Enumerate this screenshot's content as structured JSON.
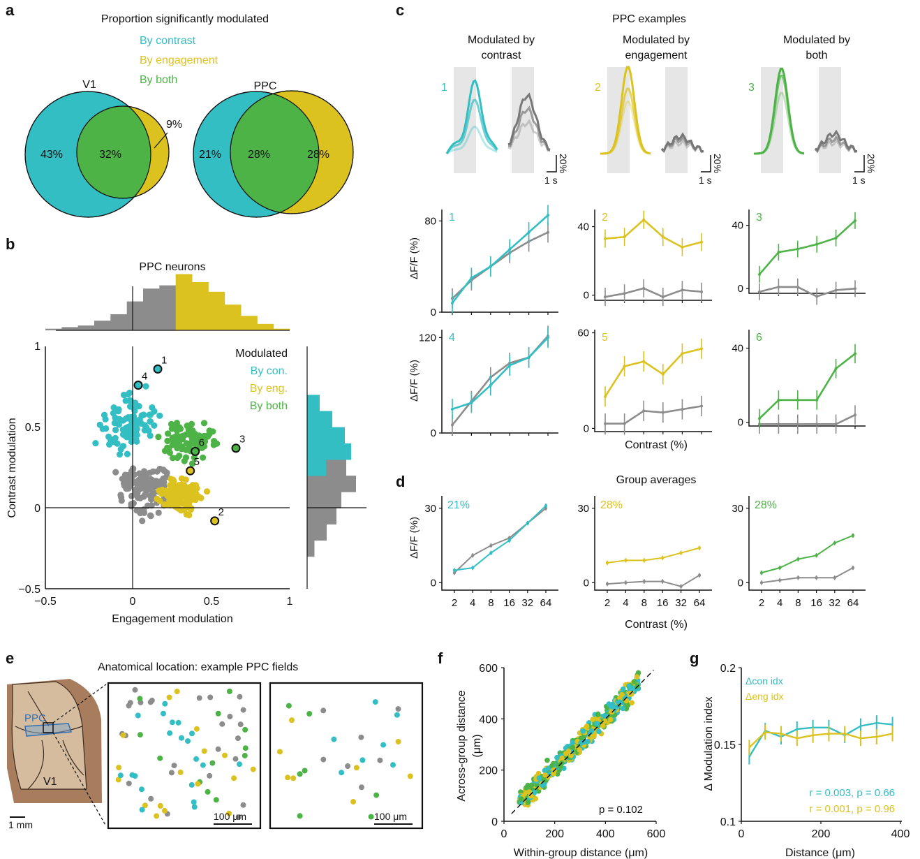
{
  "colors": {
    "contrast": "#32bec3",
    "engagement": "#dcc21e",
    "both": "#4db347",
    "none": "#8c8c8c",
    "brain": "#a77d5d",
    "ppc_outline": "#2e6fb6"
  },
  "panels": {
    "a": {
      "label": "a",
      "title": "Proportion significantly modulated",
      "legend": [
        "By contrast",
        "By engagement",
        "By both"
      ],
      "v1": {
        "name": "V1",
        "contrast_only": "43%",
        "both": "32%",
        "engagement_only": "9%"
      },
      "ppc": {
        "name": "PPC",
        "contrast_only": "21%",
        "both": "28%",
        "engagement_only": "28%"
      }
    },
    "b": {
      "label": "b",
      "title": "PPC neurons",
      "xlabel": "Engagement modulation",
      "ylabel": "Contrast modulation",
      "xticks": [
        "−0.5",
        "0",
        "0.5",
        "1"
      ],
      "yticks": [
        "−0.5",
        "0",
        "0.5",
        "1"
      ],
      "legend_title": "Modulated",
      "legend": [
        "By con.",
        "By eng.",
        "By both"
      ],
      "examples": [
        "1",
        "2",
        "3",
        "4",
        "5",
        "6"
      ]
    },
    "c": {
      "label": "c",
      "title": "PPC examples",
      "col_titles": [
        [
          "Modulated by",
          "contrast"
        ],
        [
          "Modulated by",
          "engagement"
        ],
        [
          "Modulated by",
          "both"
        ]
      ],
      "trace_numbers": [
        "1",
        "2",
        "3"
      ],
      "scalebar_time": "1 s",
      "scalebar_amp": "20%",
      "ylabel": "ΔF/F (%)",
      "xlabel": "Contrast (%)",
      "curve_numbers": [
        "1",
        "2",
        "3",
        "4",
        "5",
        "6"
      ]
    },
    "d": {
      "label": "d",
      "title": "Group averages",
      "percents": [
        "21%",
        "28%",
        "28%"
      ],
      "ylabel": "ΔF/F (%)",
      "xlabel": "Contrast (%)",
      "xticks": [
        "2",
        "4",
        "8",
        "16",
        "32",
        "64"
      ]
    },
    "e": {
      "label": "e",
      "title": "Anatomical location: example PPC fields",
      "ppc_label": "PPC",
      "v1_label": "V1",
      "scale_brain": "1 mm",
      "scale_field": "100 μm"
    },
    "f": {
      "label": "f",
      "xlabel": "Within-group distance (μm)",
      "ylabel_1": "Across-group distance",
      "ylabel_2": "(μm)",
      "ticks": [
        "0",
        "200",
        "400",
        "600"
      ],
      "pvalue": "p = 0.102"
    },
    "g": {
      "label": "g",
      "xlabel": "Distance (μm)",
      "ylabel": "Δ Modulation index",
      "xticks": [
        "0",
        "200",
        "400"
      ],
      "yticks": [
        "0.1",
        "0.15",
        "0.2"
      ],
      "legend": [
        "Δcon idx",
        "Δeng idx"
      ],
      "stat_con": "r = 0.003, p = 0.66",
      "stat_eng": "r = 0.001, p = 0.96"
    }
  },
  "chart_data": [
    {
      "panel": "a",
      "type": "venn",
      "title": "Proportion significantly modulated",
      "series": [
        {
          "name": "V1",
          "contrast_only": 43,
          "both": 32,
          "engagement_only": 9
        },
        {
          "name": "PPC",
          "contrast_only": 21,
          "both": 28,
          "engagement_only": 28
        }
      ]
    },
    {
      "panel": "b",
      "type": "scatter",
      "title": "PPC neurons",
      "xlabel": "Engagement modulation",
      "ylabel": "Contrast modulation",
      "xlim": [
        -0.5,
        1
      ],
      "ylim": [
        -0.5,
        1
      ],
      "examples": [
        {
          "id": "1",
          "x": 0.19,
          "y": 0.86
        },
        {
          "id": "2",
          "x": 0.54,
          "y": -0.08
        },
        {
          "id": "3",
          "x": 0.67,
          "y": 0.37
        },
        {
          "id": "4",
          "x": 0.07,
          "y": 0.76
        },
        {
          "id": "5",
          "x": 0.39,
          "y": 0.23
        },
        {
          "id": "6",
          "x": 0.42,
          "y": 0.35
        }
      ],
      "top_histogram_bins": [
        -0.5,
        -0.4,
        -0.3,
        -0.2,
        -0.1,
        0,
        0.1,
        0.2,
        0.3,
        0.4,
        0.5,
        0.6,
        0.7,
        0.8,
        0.9
      ],
      "top_histogram_none": [
        1,
        2,
        3,
        6,
        10,
        18,
        26,
        28,
        0,
        0,
        0,
        0,
        0,
        0,
        0
      ],
      "top_histogram_eng": [
        0,
        0,
        0,
        0,
        0,
        0,
        0,
        0,
        35,
        30,
        24,
        16,
        9,
        4,
        1
      ],
      "right_histogram_bins": [
        -0.3,
        -0.2,
        -0.1,
        0,
        0.1,
        0.2,
        0.3,
        0.4,
        0.5,
        0.6
      ],
      "right_histogram_none": [
        3,
        8,
        12,
        14,
        20,
        16,
        10,
        0,
        0,
        0
      ],
      "right_histogram_con": [
        0,
        0,
        0,
        0,
        0,
        6,
        14,
        12,
        8,
        4
      ]
    },
    {
      "panel": "c",
      "type": "line",
      "xlabel": "Contrast (%)",
      "ylabel": "ΔF/F (%)",
      "x": [
        2,
        4,
        8,
        16,
        32,
        64
      ],
      "curves": [
        {
          "id": "1",
          "ylim": [
            0,
            90
          ],
          "engaged": [
            8,
            30,
            40,
            55,
            70,
            85
          ],
          "passive": [
            12,
            28,
            40,
            52,
            62,
            70
          ]
        },
        {
          "id": "2",
          "ylim": [
            -3,
            50
          ],
          "engaged": [
            33,
            34,
            44,
            34,
            28,
            31
          ],
          "passive": [
            -1,
            1,
            4,
            -1,
            3,
            2
          ]
        },
        {
          "id": "3",
          "ylim": [
            -3,
            50
          ],
          "engaged": [
            9,
            23,
            25,
            28,
            32,
            43
          ],
          "passive": [
            -2,
            1,
            1,
            -5,
            -1,
            0
          ]
        },
        {
          "id": "4",
          "ylim": [
            0,
            130
          ],
          "engaged": [
            30,
            38,
            60,
            85,
            95,
            120
          ],
          "passive": [
            10,
            40,
            70,
            88,
            95,
            122
          ]
        },
        {
          "id": "5",
          "ylim": [
            -2,
            62
          ],
          "engaged": [
            20,
            39,
            42,
            34,
            47,
            50
          ],
          "passive": [
            3,
            3,
            11,
            10,
            12,
            14
          ]
        },
        {
          "id": "6",
          "ylim": [
            -2,
            50
          ],
          "engaged": [
            2,
            12,
            12,
            12,
            29,
            37
          ],
          "passive": [
            -1,
            -1,
            -1,
            -1,
            -1,
            4
          ]
        }
      ]
    },
    {
      "panel": "d",
      "type": "line",
      "title": "Group averages",
      "xlabel": "Contrast (%)",
      "ylabel": "ΔF/F (%)",
      "x": [
        2,
        4,
        8,
        16,
        32,
        64
      ],
      "ylim": [
        -3,
        35
      ],
      "groups": [
        {
          "label": "21%",
          "engaged": [
            5,
            6,
            12,
            17,
            24,
            31
          ],
          "passive": [
            4,
            11,
            15,
            18,
            24,
            30
          ]
        },
        {
          "label": "28%",
          "engaged": [
            8,
            9,
            9,
            10,
            12,
            14
          ],
          "passive": [
            -0.5,
            0,
            0.5,
            0.5,
            -1.5,
            3
          ]
        },
        {
          "label": "28%",
          "engaged": [
            4,
            6,
            9.5,
            11,
            16,
            19
          ],
          "passive": [
            0,
            1,
            2,
            2,
            2,
            6
          ]
        }
      ]
    },
    {
      "panel": "f",
      "type": "scatter",
      "xlabel": "Within-group distance (μm)",
      "ylabel": "Across-group distance (μm)",
      "xlim": [
        0,
        600
      ],
      "ylim": [
        0,
        600
      ],
      "pvalue": 0.102
    },
    {
      "panel": "g",
      "type": "line",
      "xlabel": "Distance (μm)",
      "ylabel": "Δ Modulation index",
      "xlim": [
        0,
        400
      ],
      "ylim": [
        0.1,
        0.2
      ],
      "x": [
        20,
        60,
        100,
        140,
        180,
        220,
        260,
        300,
        340,
        380
      ],
      "series": [
        {
          "name": "Δcon idx",
          "values": [
            0.142,
            0.159,
            0.155,
            0.16,
            0.161,
            0.161,
            0.156,
            0.162,
            0.164,
            0.163
          ]
        },
        {
          "name": "Δeng idx",
          "values": [
            0.148,
            0.158,
            0.157,
            0.154,
            0.156,
            0.157,
            0.157,
            0.154,
            0.155,
            0.157
          ]
        }
      ],
      "stats": [
        "r = 0.003, p = 0.66",
        "r = 0.001, p = 0.96"
      ]
    }
  ]
}
